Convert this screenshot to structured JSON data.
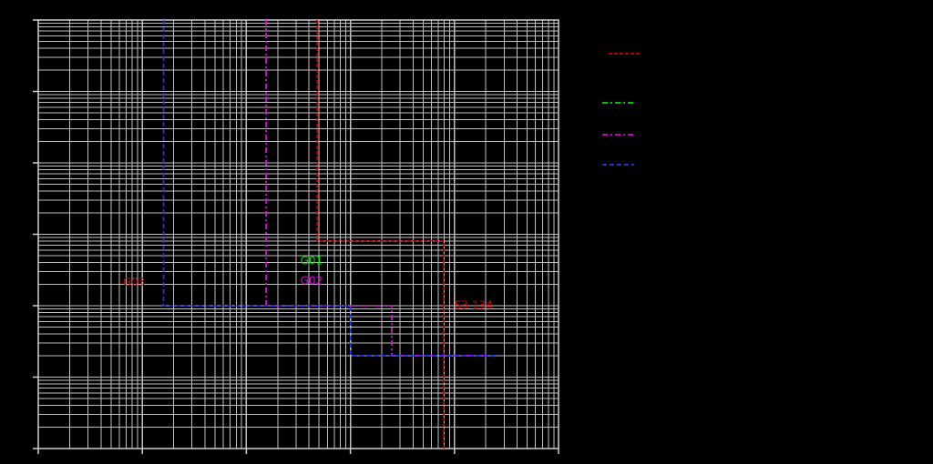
{
  "chart_data": {
    "type": "line",
    "title": "",
    "xlabel": "",
    "ylabel": "",
    "x_scale": "log",
    "y_scale": "log",
    "xlim": [
      0.01,
      1000
    ],
    "ylim": [
      0.01,
      10000
    ],
    "grid": true,
    "legend_position": "right",
    "series": [
      {
        "id": "main",
        "label": "S3 134",
        "color": "#cc0000",
        "dash": "4,2",
        "points": [
          [
            4.8,
            10000
          ],
          [
            4.8,
            8
          ],
          [
            79,
            8
          ],
          [
            79,
            0.01
          ]
        ],
        "label_at": [
          100,
          0.9
        ]
      },
      {
        "id": "g01",
        "label": "G01",
        "color": "#00dd00",
        "dash": "6,3,2,3",
        "points": [
          [
            1.55,
            10000
          ],
          [
            1.55,
            1
          ],
          [
            25,
            1
          ],
          [
            25,
            0.2
          ],
          [
            250,
            0.2
          ]
        ],
        "label_at": [
          3.3,
          3.8
        ]
      },
      {
        "id": "g02",
        "label": "G02",
        "color": "#dd00dd",
        "dash": "6,3,2,3",
        "points": [
          [
            1.55,
            10000
          ],
          [
            1.55,
            1
          ],
          [
            25,
            1
          ],
          [
            25,
            0.2
          ],
          [
            250,
            0.2
          ]
        ],
        "label_at": [
          3.3,
          2
        ]
      },
      {
        "id": "g03",
        "label": "G03",
        "color": "#2233ff",
        "dash": "5,3",
        "points": [
          [
            0.16,
            10000
          ],
          [
            0.16,
            1
          ],
          [
            10,
            1
          ],
          [
            10,
            0.2
          ],
          [
            250,
            0.2
          ]
        ],
        "label_at": [
          0.065,
          1.9
        ],
        "label_color": "#cc0000"
      }
    ],
    "legend": [
      {
        "series": "main",
        "color": "#cc0000",
        "dash": "4,2"
      },
      {
        "series": "g01",
        "color": "#00dd00",
        "dash": "6,3,2,3"
      },
      {
        "series": "g02",
        "color": "#dd00dd",
        "dash": "6,3,2,3"
      },
      {
        "series": "g03",
        "color": "#2233ff",
        "dash": "5,3"
      }
    ]
  },
  "colors": {
    "background": "#000000",
    "grid": "#bfbfbf",
    "axis": "#cfcfcf"
  }
}
